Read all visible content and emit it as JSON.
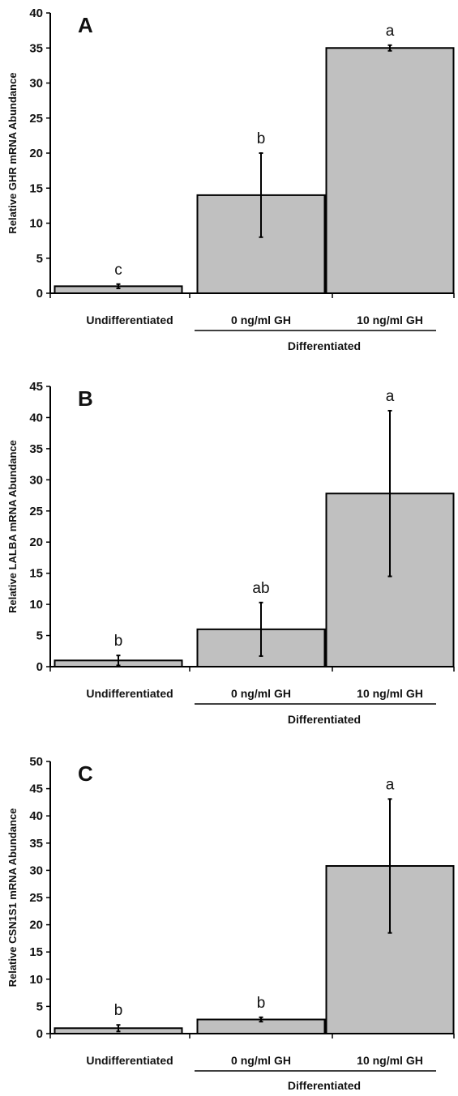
{
  "colors": {
    "bar_fill": "#c0c0c0",
    "bar_stroke": "#000000",
    "axis": "#000000",
    "text": "#111111"
  },
  "chart_data": [
    {
      "type": "bar",
      "panel": "A",
      "ylabel": "Relative GHR mRNA Abundance",
      "ylim": [
        0,
        40
      ],
      "yticks": [
        0,
        5,
        10,
        15,
        20,
        25,
        30,
        35,
        40
      ],
      "categories": [
        "Undifferentiated",
        "0 ng/ml GH",
        "10 ng/ml GH"
      ],
      "group_label": "Differentiated",
      "values": [
        1,
        14,
        35
      ],
      "errors": [
        0.3,
        6,
        0.4
      ],
      "significance": [
        "c",
        "b",
        "a"
      ],
      "grid": false
    },
    {
      "type": "bar",
      "panel": "B",
      "ylabel": "Relative LALBA mRNA Abundance",
      "ylim": [
        0,
        45
      ],
      "yticks": [
        0,
        5,
        10,
        15,
        20,
        25,
        30,
        35,
        40,
        45
      ],
      "categories": [
        "Undifferentiated",
        "0 ng/ml GH",
        "10 ng/ml GH"
      ],
      "group_label": "Differentiated",
      "values": [
        1,
        6,
        27.8
      ],
      "errors": [
        0.8,
        4.3,
        13.3
      ],
      "significance": [
        "b",
        "ab",
        "a"
      ],
      "grid": false
    },
    {
      "type": "bar",
      "panel": "C",
      "ylabel": "Relative CSN1S1 mRNA Abundance",
      "ylim": [
        0,
        50
      ],
      "yticks": [
        0,
        5,
        10,
        15,
        20,
        25,
        30,
        35,
        40,
        45,
        50
      ],
      "categories": [
        "Undifferentiated",
        "0 ng/ml GH",
        "10 ng/ml GH"
      ],
      "group_label": "Differentiated",
      "values": [
        1,
        2.6,
        30.8
      ],
      "errors": [
        0.6,
        0.4,
        12.3
      ],
      "significance": [
        "b",
        "b",
        "a"
      ],
      "grid": false
    }
  ]
}
